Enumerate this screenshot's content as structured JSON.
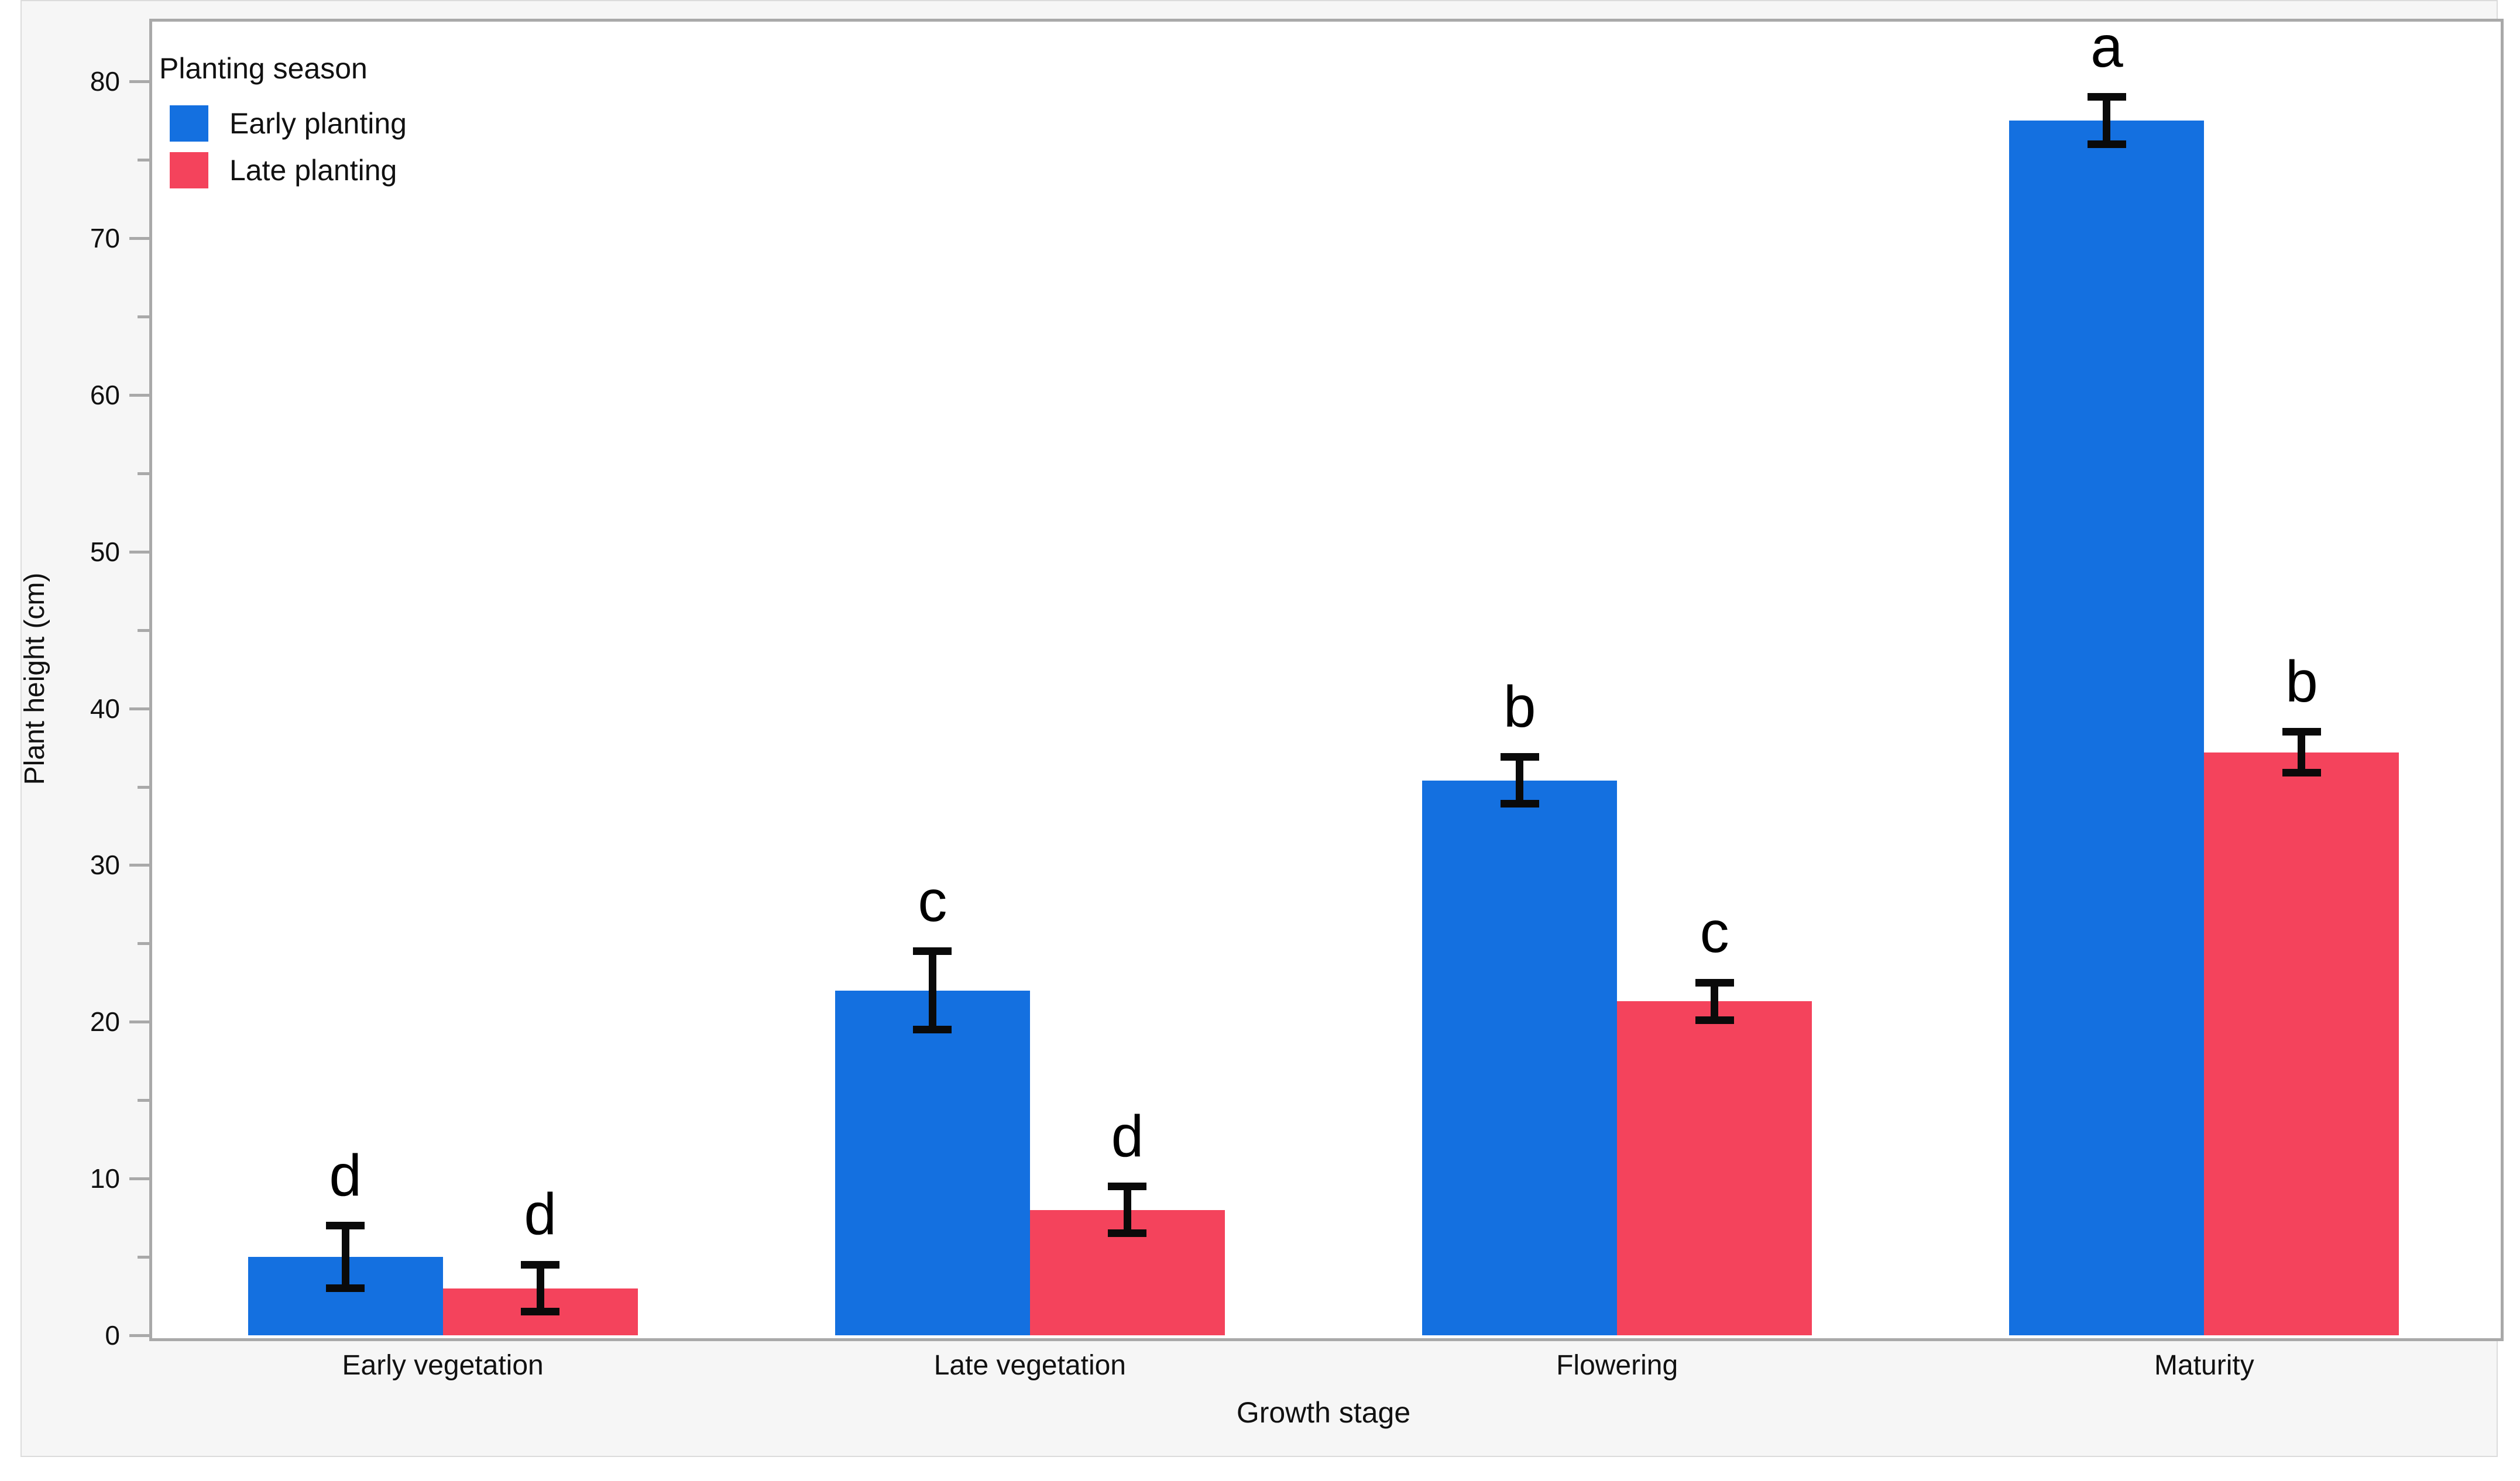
{
  "figure": {
    "background": "#f6f6f6",
    "plot_background": "#ffffff",
    "border_color": "#a9a9a9",
    "error_bar_color": "#0a0a0a"
  },
  "legend": {
    "title": "Planting season",
    "items": [
      {
        "label": "Early planting",
        "color": "#1470e0"
      },
      {
        "label": "Late planting",
        "color": "#f4435c"
      }
    ]
  },
  "chart_data": {
    "type": "bar",
    "title": "",
    "categories": [
      "Early vegetation",
      "Late vegetation",
      "Flowering",
      "Maturity"
    ],
    "series": [
      {
        "name": "Early planting",
        "color": "#1470e0",
        "values": [
          5,
          22,
          35.4,
          77.5
        ],
        "errors": [
          2,
          2.5,
          1.5,
          1.5
        ],
        "letters": [
          "d",
          "c",
          "b",
          "a"
        ]
      },
      {
        "name": "Late planting",
        "color": "#f4435c",
        "values": [
          3,
          8,
          21.3,
          37.2
        ],
        "errors": [
          1.5,
          1.5,
          1.2,
          1.3
        ],
        "letters": [
          "d",
          "d",
          "c",
          "b"
        ]
      }
    ],
    "xlabel": "Growth stage",
    "ylabel": "Plant height (cm)",
    "ylim": [
      0,
      84
    ],
    "yticks": [
      0,
      10,
      20,
      30,
      40,
      50,
      60,
      70,
      80
    ],
    "minor_tick_step": 5,
    "grid": false,
    "legend_position": "top-left"
  }
}
